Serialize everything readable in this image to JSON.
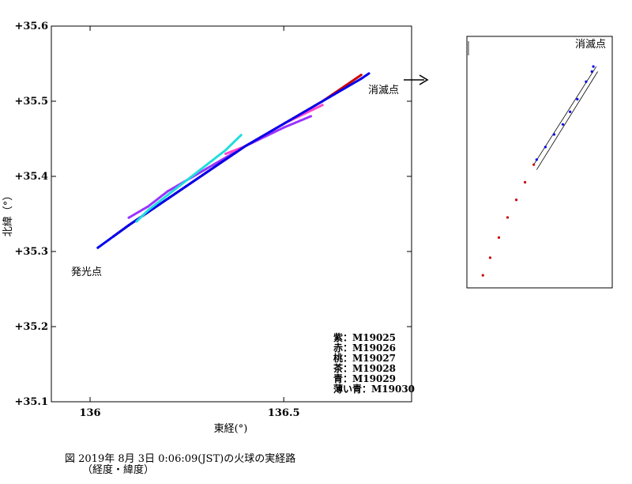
{
  "chart_data": [
    {
      "type": "scatter",
      "title": "",
      "xlabel": "東経(°)",
      "ylabel": "北緯（°）",
      "xlim": [
        135.9,
        136.83
      ],
      "ylim": [
        35.1,
        35.6
      ],
      "x_ticks": [
        136,
        136.5
      ],
      "x_tick_labels": [
        "136",
        "136.5"
      ],
      "y_ticks": [
        35.1,
        35.2,
        35.3,
        35.4,
        35.5,
        35.6
      ],
      "y_tick_labels": [
        "+35.1",
        "+35.2",
        "+35.3",
        "+35.4",
        "+35.5",
        "+35.6"
      ],
      "grid": false,
      "legend_position": "bottom-right",
      "legend": [
        "紫：M19025",
        "赤：M19026",
        "桃：M19027",
        "茶：M19028",
        "青：M19029",
        "薄い青：M19030"
      ],
      "annotations": [
        {
          "text": "発光点",
          "x": 135.92,
          "y": 35.275
        },
        {
          "text": "消滅点",
          "x": 136.715,
          "y": 35.51
        }
      ],
      "series": [
        {
          "color": "#9933ff",
          "x": [
            136.1,
            136.15,
            136.2,
            136.3,
            136.4,
            136.5,
            136.57
          ],
          "y": [
            35.345,
            35.36,
            35.38,
            35.41,
            35.44,
            35.465,
            35.48
          ]
        },
        {
          "color": "#cc0000",
          "x": [
            136.06,
            136.1,
            136.2,
            136.3,
            136.4,
            136.5,
            136.6,
            136.7
          ],
          "y": [
            35.32,
            35.335,
            35.37,
            35.405,
            35.44,
            35.47,
            35.5,
            35.535
          ]
        },
        {
          "color": "#ff44cc",
          "x": [
            136.35,
            136.4,
            136.5,
            136.6
          ],
          "y": [
            35.43,
            35.44,
            35.47,
            35.495
          ]
        },
        {
          "color": "#663333",
          "x": [
            136.06,
            136.1,
            136.2,
            136.3,
            136.4
          ],
          "y": [
            35.32,
            35.335,
            35.37,
            35.405,
            35.44
          ]
        },
        {
          "color": "#0000ee",
          "x": [
            136.02,
            136.06,
            136.1,
            136.2,
            136.3,
            136.4,
            136.5,
            136.6,
            136.7,
            136.72
          ],
          "y": [
            35.305,
            35.32,
            35.335,
            35.37,
            35.405,
            35.44,
            35.47,
            35.5,
            35.53,
            35.537
          ]
        },
        {
          "color": "#22dddd",
          "x": [
            136.12,
            136.15,
            136.2,
            136.25,
            136.3,
            136.35,
            136.39
          ],
          "y": [
            35.34,
            35.355,
            35.375,
            35.395,
            35.415,
            35.435,
            35.455
          ]
        }
      ]
    },
    {
      "type": "scatter",
      "title": "",
      "annotations": [
        {
          "text": "消滅点"
        }
      ],
      "series": [
        {
          "color": "#cc0000",
          "x": [
            0.11,
            0.16,
            0.22,
            0.28,
            0.34,
            0.4,
            0.46
          ],
          "y": [
            0.05,
            0.12,
            0.2,
            0.28,
            0.35,
            0.42,
            0.49
          ]
        },
        {
          "color": "#0000ee",
          "x": [
            0.48,
            0.54,
            0.6,
            0.66,
            0.71,
            0.76,
            0.82,
            0.86,
            0.87
          ],
          "y": [
            0.51,
            0.56,
            0.61,
            0.65,
            0.7,
            0.75,
            0.82,
            0.86,
            0.88
          ]
        }
      ]
    }
  ],
  "caption": {
    "line1": "図  2019年 8月 3日 0:06:09(JST)の火球の実経路",
    "line2": "（経度・緯度）"
  }
}
